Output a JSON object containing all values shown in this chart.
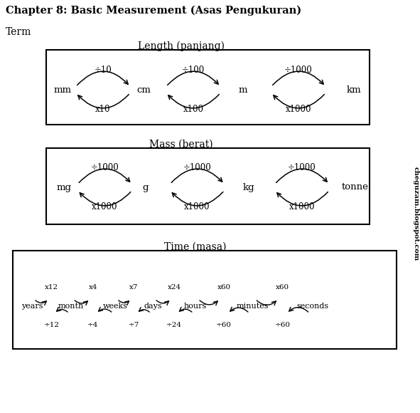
{
  "title": "Chapter 8: Basic Measurement (Asas Pengukuran)",
  "term_label": "Term",
  "length_title": "Length (panjang)",
  "mass_title": "Mass (berat)",
  "time_title": "Time (masa)",
  "watermark": "cheguzam.blogspot.com",
  "length_units": [
    "mm",
    "cm",
    "m",
    "km"
  ],
  "length_div": [
    "÷10",
    "÷100",
    "÷1000"
  ],
  "length_mul": [
    "x10",
    "x100",
    "x1000"
  ],
  "mass_units": [
    "mg",
    "g",
    "kg",
    "tonne"
  ],
  "mass_div": [
    "÷1000",
    "÷1000",
    "÷1000"
  ],
  "mass_mul": [
    "x1000",
    "x1000",
    "x1000"
  ],
  "time_units": [
    "years",
    "month",
    "weeks",
    "days",
    "hours",
    "minutes",
    "seconds"
  ],
  "time_mul": [
    "x12",
    "x4",
    "x7",
    "x24",
    "x60",
    "x60"
  ],
  "time_div": [
    "÷12",
    "÷4",
    "÷7",
    "÷24",
    "÷60",
    "÷60"
  ],
  "bg_color": "#ffffff",
  "text_color": "#000000"
}
